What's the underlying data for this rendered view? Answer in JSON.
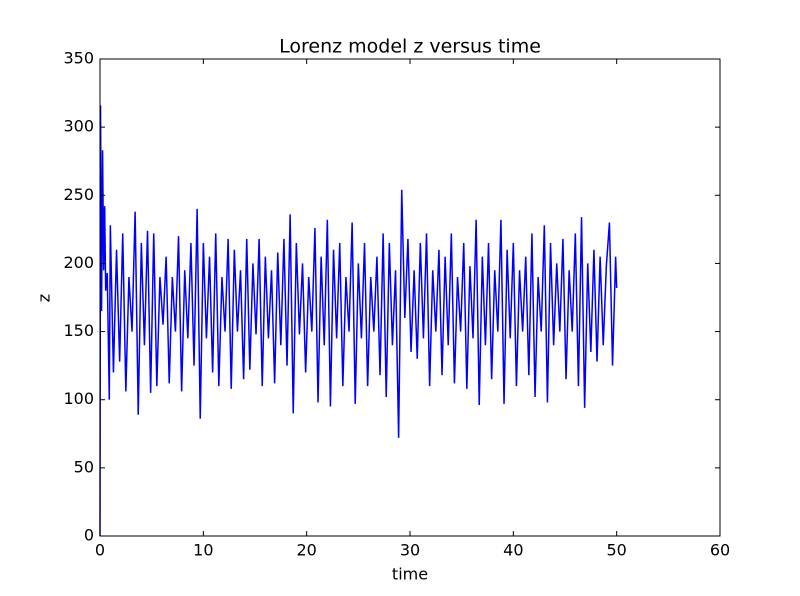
{
  "chart_data": {
    "type": "line",
    "title": "Lorenz model z versus time",
    "x_label": "time",
    "y_label": "z",
    "x": [
      0,
      0.05,
      0.15,
      0.25,
      0.35,
      0.45,
      0.55,
      0.7,
      0.9,
      1,
      1.3,
      1.6,
      1.9,
      2.2,
      2.5,
      2.8,
      3.1,
      3.4,
      3.7,
      4,
      4.3,
      4.6,
      4.9,
      5.2,
      5.5,
      5.8,
      6.1,
      6.4,
      6.7,
      7,
      7.3,
      7.6,
      7.9,
      8.2,
      8.5,
      8.8,
      9.1,
      9.4,
      9.7,
      10,
      10.3,
      10.6,
      10.9,
      11.2,
      11.5,
      11.8,
      12.1,
      12.4,
      12.7,
      13,
      13.3,
      13.6,
      13.9,
      14.2,
      14.5,
      14.8,
      15.1,
      15.4,
      15.7,
      16,
      16.3,
      16.6,
      16.9,
      17.2,
      17.5,
      17.8,
      18.1,
      18.4,
      18.7,
      19,
      19.3,
      19.6,
      19.9,
      20.2,
      20.5,
      20.8,
      21.1,
      21.4,
      21.7,
      22,
      22.3,
      22.6,
      22.9,
      23.2,
      23.5,
      23.8,
      24.1,
      24.4,
      24.7,
      25,
      25.3,
      25.6,
      25.9,
      26.2,
      26.5,
      26.8,
      27.1,
      27.4,
      27.7,
      28,
      28.3,
      28.6,
      28.9,
      29.2,
      29.5,
      29.8,
      30.1,
      30.4,
      30.7,
      31,
      31.3,
      31.6,
      31.9,
      32.2,
      32.5,
      32.8,
      33.1,
      33.4,
      33.7,
      34,
      34.3,
      34.6,
      34.9,
      35.2,
      35.5,
      35.8,
      36.1,
      36.4,
      36.7,
      37,
      37.3,
      37.6,
      37.9,
      38.2,
      38.5,
      38.8,
      39.1,
      39.4,
      39.7,
      40,
      40.3,
      40.6,
      40.9,
      41.2,
      41.5,
      41.8,
      42.1,
      42.4,
      42.7,
      43,
      43.3,
      43.6,
      43.9,
      44.2,
      44.5,
      44.8,
      45.1,
      45.4,
      45.7,
      46,
      46.3,
      46.6,
      46.9,
      47.2,
      47.5,
      47.8,
      48.1,
      48.4,
      48.7,
      49,
      49.3,
      49.6,
      49.9,
      50
    ],
    "series": [
      {
        "name": "z",
        "color": "#0000ff",
        "values": [
          0,
          316,
          165,
          283,
          195,
          242,
          180,
          193,
          100,
          228,
          120,
          210,
          128,
          222,
          106,
          190,
          150,
          238,
          89,
          215,
          140,
          224,
          105,
          222,
          110,
          190,
          155,
          205,
          112,
          190,
          150,
          220,
          106,
          195,
          145,
          215,
          125,
          240,
          86,
          215,
          145,
          205,
          120,
          222,
          110,
          190,
          150,
          218,
          108,
          210,
          150,
          195,
          115,
          218,
          122,
          200,
          148,
          218,
          110,
          205,
          145,
          195,
          112,
          208,
          140,
          218,
          125,
          236,
          90,
          215,
          148,
          200,
          120,
          190,
          150,
          226,
          98,
          205,
          140,
          232,
          95,
          210,
          145,
          215,
          110,
          190,
          150,
          230,
          97,
          200,
          145,
          215,
          110,
          190,
          150,
          205,
          118,
          222,
          102,
          215,
          140,
          195,
          72,
          254,
          160,
          218,
          135,
          195,
          130,
          215,
          145,
          222,
          110,
          195,
          150,
          210,
          118,
          205,
          140,
          222,
          112,
          190,
          150,
          215,
          108,
          198,
          145,
          232,
          96,
          205,
          140,
          215,
          115,
          195,
          150,
          232,
          97,
          210,
          145,
          215,
          110,
          195,
          150,
          205,
          118,
          222,
          102,
          190,
          150,
          228,
          98,
          215,
          140,
          200,
          150,
          218,
          115,
          195,
          150,
          222,
          110,
          234,
          94,
          200,
          135,
          210,
          128,
          205,
          140,
          198,
          230,
          125,
          205,
          182
        ]
      }
    ],
    "xlim": [
      0,
      60
    ],
    "ylim": [
      0,
      350
    ],
    "xticks": [
      0,
      10,
      20,
      30,
      40,
      50,
      60
    ],
    "yticks": [
      0,
      50,
      100,
      150,
      200,
      250,
      300,
      350
    ]
  }
}
